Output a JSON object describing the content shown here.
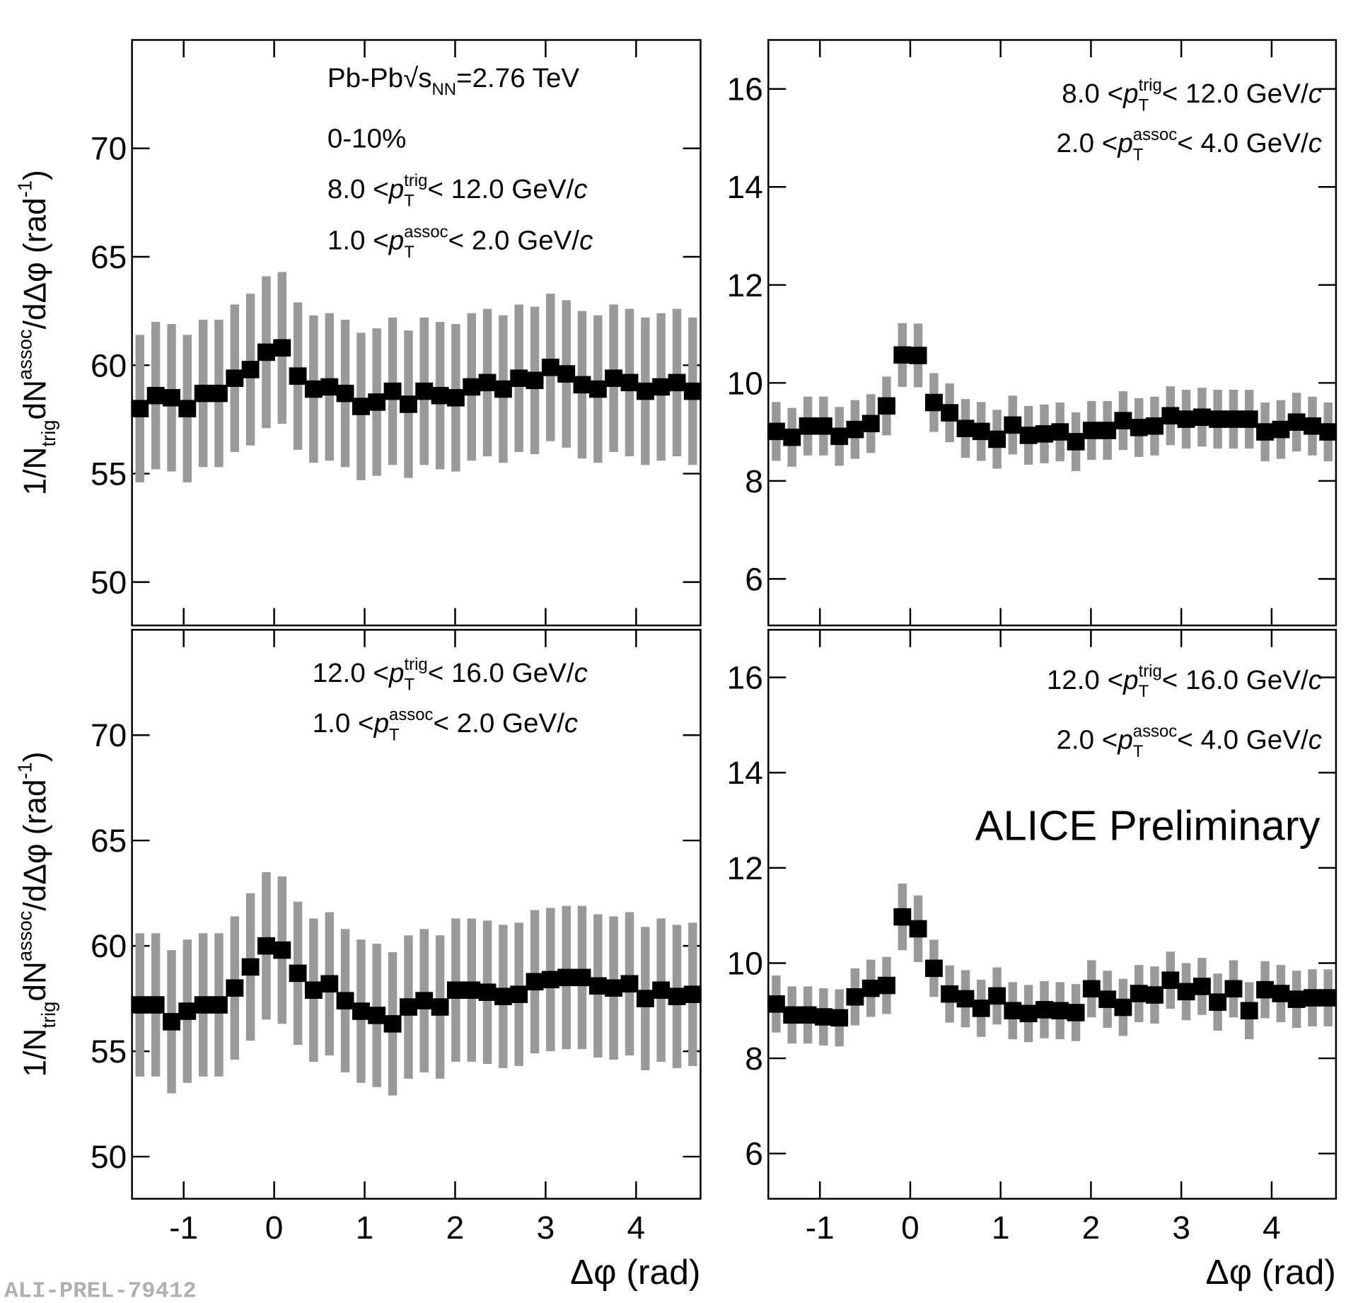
{
  "watermark": "ALI-PREL-79412",
  "chart_data": [
    {
      "type": "scatter",
      "color": "#000000",
      "error_color": "#999999",
      "xtick_labels": false,
      "annotations": [
        [
          {
            "text": "Pb-Pb "
          },
          {
            "text": "√"
          },
          {
            "text": "s"
          },
          {
            "text": "NN",
            "pos": "sub"
          },
          {
            "text": "=2.76 TeV"
          }
        ],
        [
          {
            "text": "0-10%"
          }
        ],
        [
          {
            "text": "8.0 < "
          },
          {
            "text": "p",
            "italic": true
          },
          {
            "text": "trig",
            "pos": "sup"
          },
          {
            "text": "T",
            "pos": "sub"
          },
          {
            "text": " < 12.0 GeV/"
          },
          {
            "text": "c",
            "italic": true
          }
        ],
        [
          {
            "text": "1.0 < "
          },
          {
            "text": "p",
            "italic": true
          },
          {
            "text": "assoc",
            "pos": "sup"
          },
          {
            "text": "T",
            "pos": "sub"
          },
          {
            "text": " < 2.0 GeV/"
          },
          {
            "text": "c",
            "italic": true
          }
        ]
      ],
      "ylabel": [
        {
          "text": "1/N"
        },
        {
          "text": "trig",
          "pos": "sub"
        },
        {
          "text": "dN"
        },
        {
          "text": "assoc",
          "pos": "sup"
        },
        {
          "text": "/dΔφ (rad"
        },
        {
          "text": "-1",
          "pos": "sup"
        },
        {
          "text": ")"
        }
      ],
      "xlim": [
        -1.5708,
        4.7124
      ],
      "ylim": [
        48,
        75
      ],
      "xticks": [
        -1,
        0,
        1,
        2,
        3,
        4
      ],
      "yticks": [
        50,
        55,
        60,
        65,
        70
      ],
      "x": [
        -1.484,
        -1.309,
        -1.134,
        -0.96,
        -0.785,
        -0.611,
        -0.436,
        -0.262,
        -0.087,
        0.087,
        0.262,
        0.436,
        0.611,
        0.785,
        0.96,
        1.134,
        1.309,
        1.484,
        1.658,
        1.833,
        2.007,
        2.182,
        2.356,
        2.531,
        2.705,
        2.88,
        3.054,
        3.229,
        3.403,
        3.578,
        3.752,
        3.927,
        4.102,
        4.276,
        4.451,
        4.625
      ],
      "values": [
        58.0,
        58.6,
        58.5,
        58.0,
        58.7,
        58.7,
        59.4,
        59.8,
        60.6,
        60.8,
        59.5,
        58.9,
        59.0,
        58.7,
        58.1,
        58.3,
        58.8,
        58.2,
        58.8,
        58.6,
        58.5,
        59.0,
        59.2,
        58.9,
        59.4,
        59.3,
        59.9,
        59.6,
        59.1,
        58.9,
        59.4,
        59.2,
        58.8,
        59.0,
        59.2,
        58.8
      ],
      "errors": [
        3.4,
        3.4,
        3.4,
        3.4,
        3.4,
        3.4,
        3.4,
        3.5,
        3.5,
        3.5,
        3.4,
        3.4,
        3.4,
        3.4,
        3.4,
        3.4,
        3.4,
        3.4,
        3.4,
        3.4,
        3.4,
        3.4,
        3.4,
        3.4,
        3.4,
        3.4,
        3.4,
        3.4,
        3.4,
        3.4,
        3.4,
        3.4,
        3.4,
        3.4,
        3.4,
        3.4
      ]
    },
    {
      "type": "scatter",
      "color": "#000000",
      "error_color": "#999999",
      "xtick_labels": false,
      "annotations": [
        [
          {
            "text": "8.0 < "
          },
          {
            "text": "p",
            "italic": true
          },
          {
            "text": "trig",
            "pos": "sup"
          },
          {
            "text": "T",
            "pos": "sub"
          },
          {
            "text": " < 12.0 GeV/"
          },
          {
            "text": "c",
            "italic": true
          }
        ],
        [
          {
            "text": "2.0 < "
          },
          {
            "text": "p",
            "italic": true
          },
          {
            "text": "assoc",
            "pos": "sup"
          },
          {
            "text": "T",
            "pos": "sub"
          },
          {
            "text": " < 4.0 GeV/"
          },
          {
            "text": "c",
            "italic": true
          }
        ]
      ],
      "xlim": [
        -1.5708,
        4.7124
      ],
      "ylim": [
        5.05,
        17
      ],
      "xticks": [
        -1,
        0,
        1,
        2,
        3,
        4
      ],
      "yticks": [
        6,
        8,
        10,
        12,
        14,
        16
      ],
      "x": [
        -1.484,
        -1.309,
        -1.134,
        -0.96,
        -0.785,
        -0.611,
        -0.436,
        -0.262,
        -0.087,
        0.087,
        0.262,
        0.436,
        0.611,
        0.785,
        0.96,
        1.134,
        1.309,
        1.484,
        1.658,
        1.833,
        2.007,
        2.182,
        2.356,
        2.531,
        2.705,
        2.88,
        3.054,
        3.229,
        3.403,
        3.578,
        3.752,
        3.927,
        4.102,
        4.276,
        4.451,
        4.625
      ],
      "values": [
        9.01,
        8.89,
        9.12,
        9.12,
        8.91,
        9.05,
        9.17,
        9.53,
        10.57,
        10.56,
        9.6,
        9.39,
        9.07,
        9.01,
        8.85,
        9.14,
        8.93,
        8.96,
        9.0,
        8.8,
        9.03,
        9.03,
        9.23,
        9.09,
        9.12,
        9.33,
        9.26,
        9.3,
        9.26,
        9.26,
        9.26,
        9.0,
        9.05,
        9.2,
        9.12,
        9.0
      ],
      "errors": [
        0.6,
        0.6,
        0.6,
        0.6,
        0.6,
        0.6,
        0.6,
        0.6,
        0.65,
        0.65,
        0.6,
        0.6,
        0.6,
        0.6,
        0.6,
        0.6,
        0.6,
        0.6,
        0.6,
        0.6,
        0.6,
        0.6,
        0.6,
        0.6,
        0.6,
        0.6,
        0.6,
        0.6,
        0.6,
        0.6,
        0.6,
        0.6,
        0.6,
        0.6,
        0.6,
        0.6
      ]
    },
    {
      "type": "scatter",
      "color": "#000000",
      "error_color": "#999999",
      "annotations": [
        [
          {
            "text": "12.0 < "
          },
          {
            "text": "p",
            "italic": true
          },
          {
            "text": "trig",
            "pos": "sup"
          },
          {
            "text": "T",
            "pos": "sub"
          },
          {
            "text": " < 16.0 GeV/"
          },
          {
            "text": "c",
            "italic": true
          }
        ],
        [
          {
            "text": "1.0 < "
          },
          {
            "text": "p",
            "italic": true
          },
          {
            "text": "assoc",
            "pos": "sup"
          },
          {
            "text": "T",
            "pos": "sub"
          },
          {
            "text": " < 2.0 GeV/"
          },
          {
            "text": "c",
            "italic": true
          }
        ]
      ],
      "ylabel": [
        {
          "text": "1/N"
        },
        {
          "text": "trig",
          "pos": "sub"
        },
        {
          "text": "dN"
        },
        {
          "text": "assoc",
          "pos": "sup"
        },
        {
          "text": "/dΔφ (rad"
        },
        {
          "text": "-1",
          "pos": "sup"
        },
        {
          "text": ")"
        }
      ],
      "xlabel": "Δφ (rad)",
      "xlim": [
        -1.5708,
        4.7124
      ],
      "ylim": [
        48,
        75
      ],
      "xticks": [
        -1,
        0,
        1,
        2,
        3,
        4
      ],
      "yticks": [
        50,
        55,
        60,
        65,
        70
      ],
      "x": [
        -1.484,
        -1.309,
        -1.134,
        -0.96,
        -0.785,
        -0.611,
        -0.436,
        -0.262,
        -0.087,
        0.087,
        0.262,
        0.436,
        0.611,
        0.785,
        0.96,
        1.134,
        1.309,
        1.484,
        1.658,
        1.833,
        2.007,
        2.182,
        2.356,
        2.531,
        2.705,
        2.88,
        3.054,
        3.229,
        3.403,
        3.578,
        3.752,
        3.927,
        4.102,
        4.276,
        4.451,
        4.625
      ],
      "values": [
        57.2,
        57.2,
        56.4,
        56.9,
        57.2,
        57.2,
        58.0,
        59.0,
        60.0,
        59.8,
        58.7,
        57.9,
        58.2,
        57.4,
        56.9,
        56.7,
        56.3,
        57.1,
        57.4,
        57.1,
        57.9,
        57.9,
        57.8,
        57.6,
        57.7,
        58.3,
        58.4,
        58.5,
        58.5,
        58.1,
        58.0,
        58.2,
        57.5,
        57.9,
        57.6,
        57.7
      ],
      "errors": [
        3.4,
        3.4,
        3.4,
        3.4,
        3.4,
        3.4,
        3.4,
        3.5,
        3.5,
        3.5,
        3.4,
        3.4,
        3.4,
        3.4,
        3.4,
        3.4,
        3.4,
        3.4,
        3.4,
        3.4,
        3.4,
        3.4,
        3.4,
        3.4,
        3.4,
        3.4,
        3.4,
        3.4,
        3.4,
        3.4,
        3.4,
        3.4,
        3.4,
        3.4,
        3.4,
        3.4
      ]
    },
    {
      "type": "scatter",
      "color": "#000000",
      "error_color": "#999999",
      "annotations": [
        [
          {
            "text": "12.0 < "
          },
          {
            "text": "p",
            "italic": true
          },
          {
            "text": "trig",
            "pos": "sup"
          },
          {
            "text": "T",
            "pos": "sub"
          },
          {
            "text": " < 16.0 GeV/"
          },
          {
            "text": "c",
            "italic": true
          }
        ],
        [
          {
            "text": "2.0 < "
          },
          {
            "text": "p",
            "italic": true
          },
          {
            "text": "assoc",
            "pos": "sup"
          },
          {
            "text": "T",
            "pos": "sub"
          },
          {
            "text": " < 4.0 GeV/"
          },
          {
            "text": "c",
            "italic": true
          }
        ]
      ],
      "label": "ALICE Preliminary",
      "xlabel": "Δφ (rad)",
      "xlim": [
        -1.5708,
        4.7124
      ],
      "ylim": [
        5.05,
        17
      ],
      "xticks": [
        -1,
        0,
        1,
        2,
        3,
        4
      ],
      "yticks": [
        6,
        8,
        10,
        12,
        14,
        16
      ],
      "x": [
        -1.484,
        -1.309,
        -1.134,
        -0.96,
        -0.785,
        -0.611,
        -0.436,
        -0.262,
        -0.087,
        0.087,
        0.262,
        0.436,
        0.611,
        0.785,
        0.96,
        1.134,
        1.309,
        1.484,
        1.658,
        1.833,
        2.007,
        2.182,
        2.356,
        2.531,
        2.705,
        2.88,
        3.054,
        3.229,
        3.403,
        3.578,
        3.752,
        3.927,
        4.102,
        4.276,
        4.451,
        4.625
      ],
      "values": [
        9.14,
        8.91,
        8.91,
        8.87,
        8.85,
        9.29,
        9.47,
        9.53,
        10.97,
        10.72,
        9.89,
        9.35,
        9.25,
        9.05,
        9.31,
        9.0,
        8.94,
        9.02,
        9.0,
        8.96,
        9.46,
        9.24,
        9.07,
        9.36,
        9.33,
        9.64,
        9.4,
        9.51,
        9.18,
        9.46,
        9.0,
        9.44,
        9.36,
        9.24,
        9.27,
        9.27
      ],
      "errors": [
        0.6,
        0.6,
        0.6,
        0.6,
        0.6,
        0.6,
        0.6,
        0.6,
        0.7,
        0.7,
        0.6,
        0.6,
        0.6,
        0.6,
        0.6,
        0.6,
        0.6,
        0.6,
        0.6,
        0.6,
        0.6,
        0.6,
        0.6,
        0.6,
        0.6,
        0.6,
        0.6,
        0.6,
        0.6,
        0.6,
        0.6,
        0.6,
        0.6,
        0.6,
        0.6,
        0.6
      ]
    }
  ]
}
